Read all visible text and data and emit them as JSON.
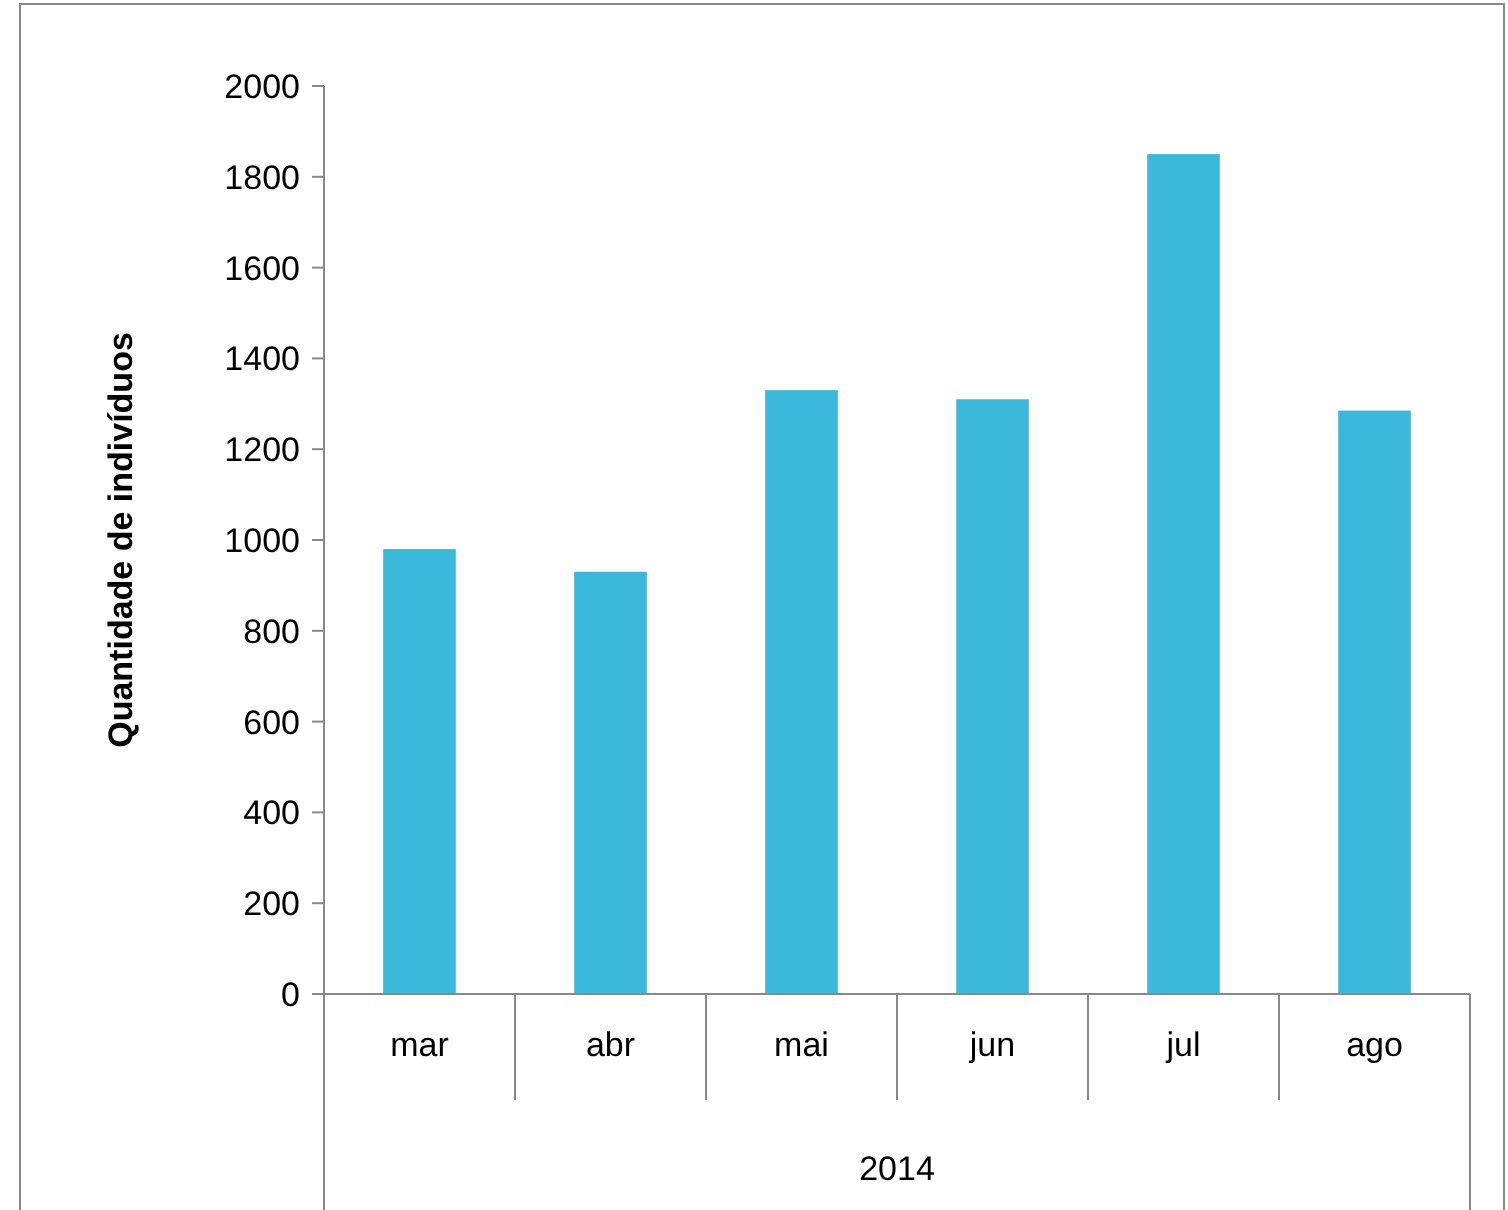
{
  "chart_data": {
    "type": "bar",
    "ylabel": "Quantidade de indivíduos",
    "xlabel": "2014",
    "categories": [
      "mar",
      "abr",
      "mai",
      "jun",
      "jul",
      "ago"
    ],
    "values": [
      980,
      930,
      1330,
      1310,
      1850,
      1285
    ],
    "color": "#3bb8da",
    "ylim": [
      0,
      2000
    ],
    "yticks": [
      0,
      200,
      400,
      600,
      800,
      1000,
      1200,
      1400,
      1600,
      1800,
      2000
    ],
    "grid": false
  }
}
